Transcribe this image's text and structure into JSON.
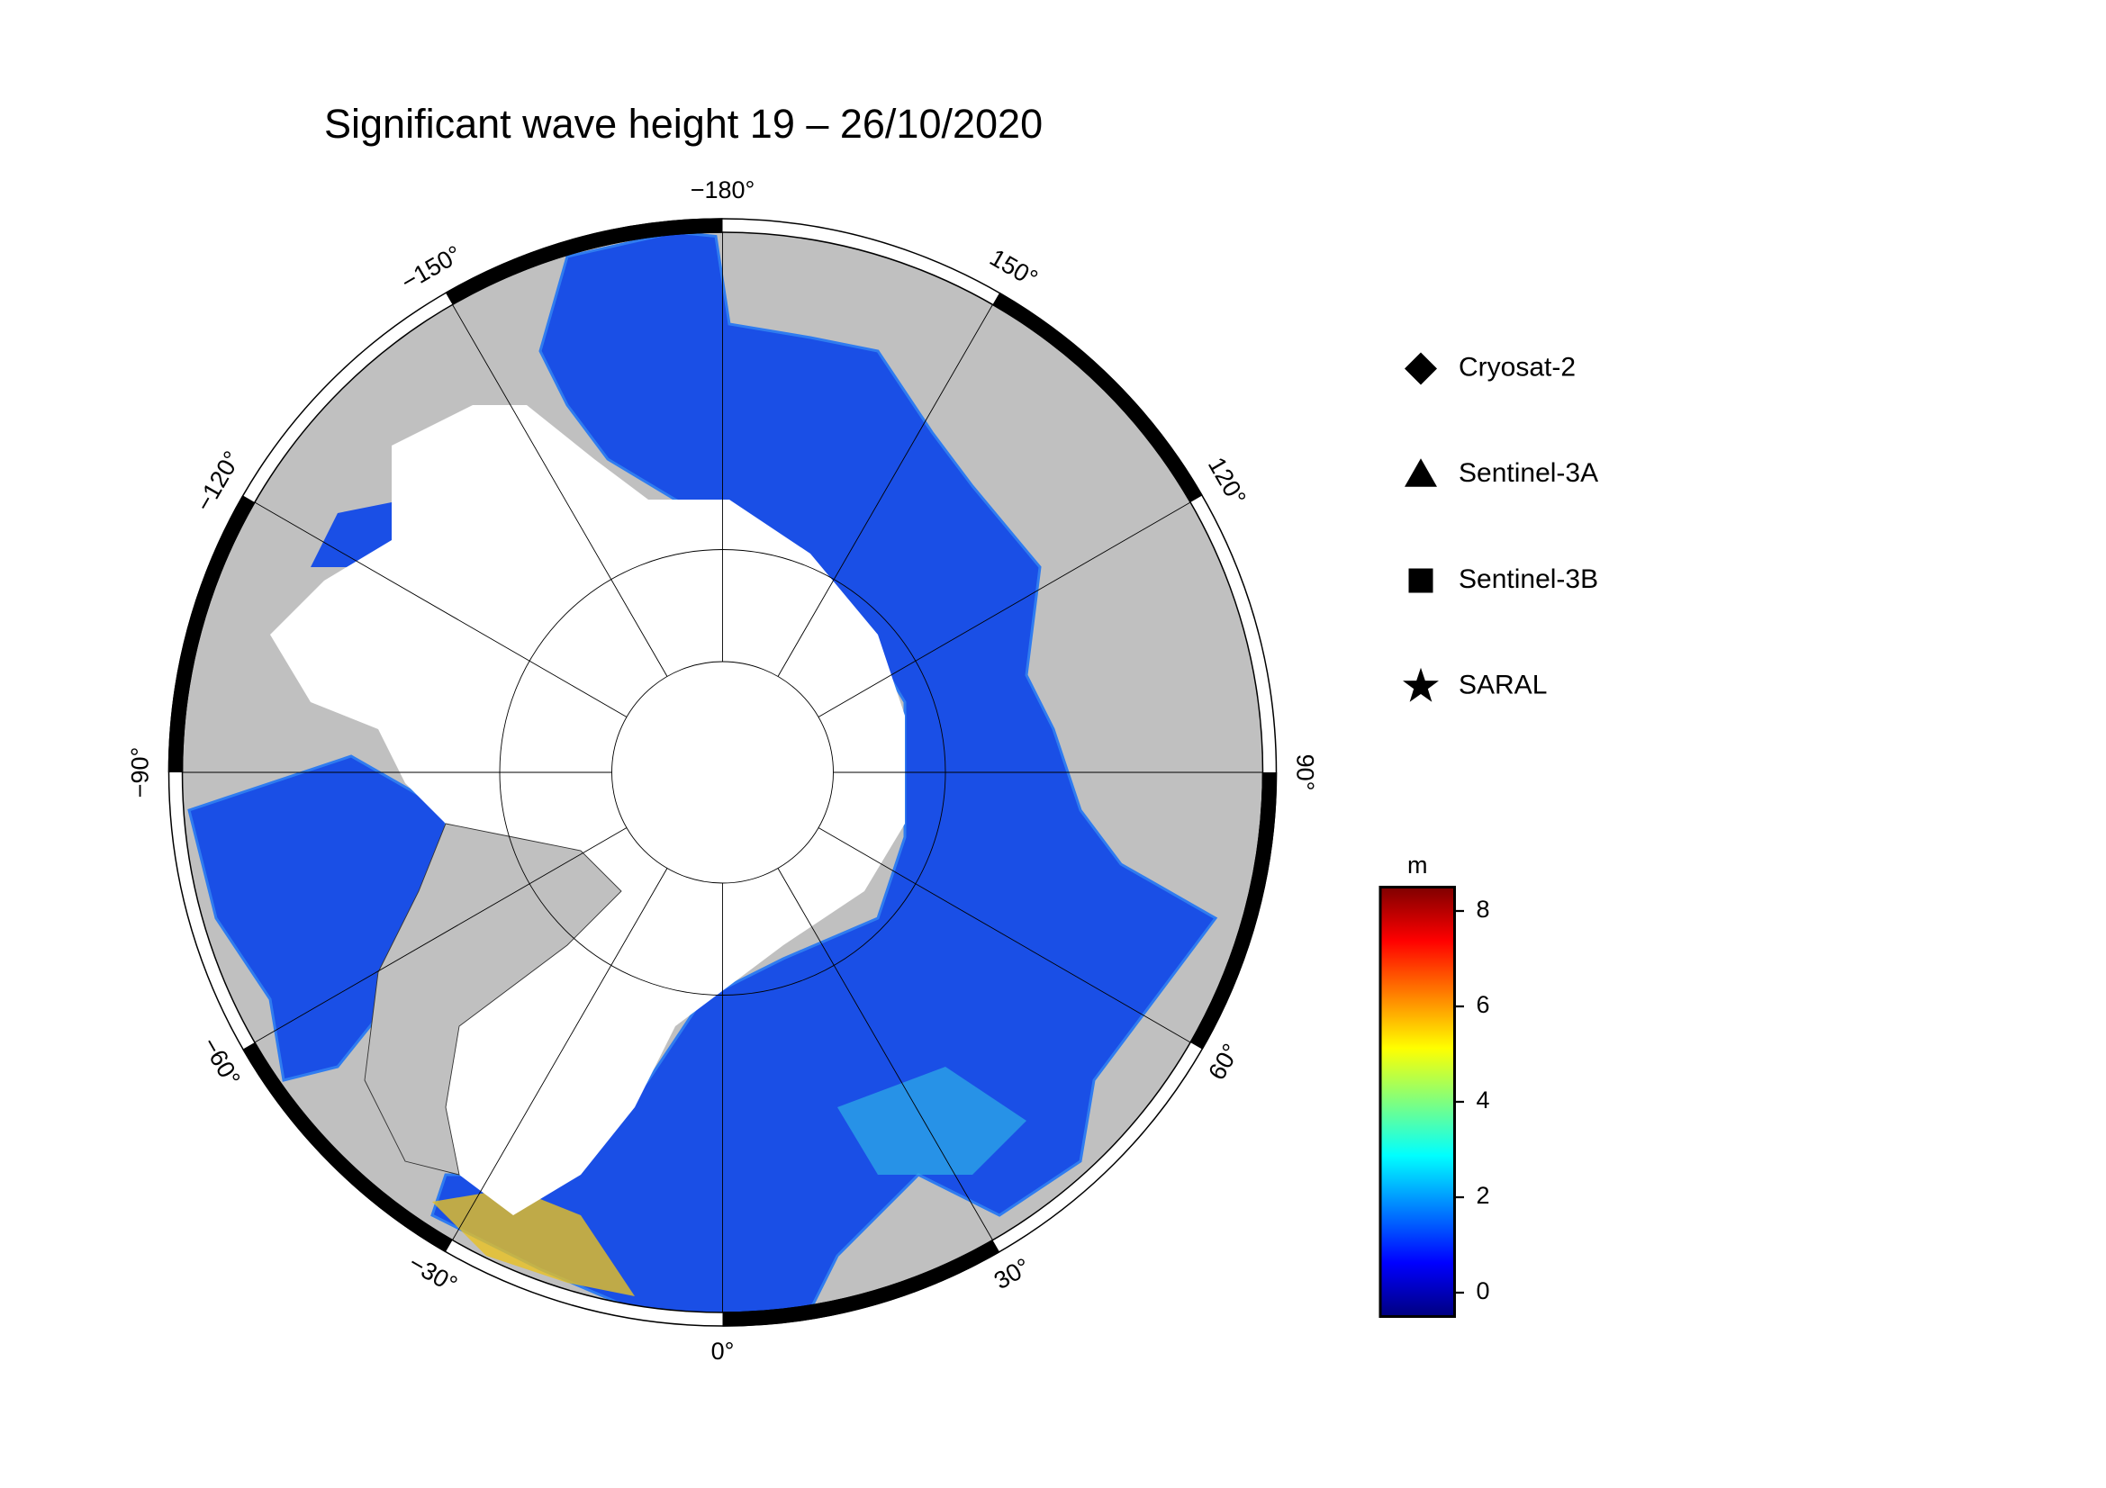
{
  "chart_data": {
    "type": "polar-map",
    "title": "Significant wave height 19 – 26/10/2020",
    "lon_ticks": [
      {
        "value": -180,
        "label": "−180°"
      },
      {
        "value": 150,
        "label": "150°"
      },
      {
        "value": 120,
        "label": "120°"
      },
      {
        "value": 90,
        "label": "90°"
      },
      {
        "value": 60,
        "label": "60°"
      },
      {
        "value": 30,
        "label": "30°"
      },
      {
        "value": 0,
        "label": "0°"
      },
      {
        "value": -30,
        "label": "−30°"
      },
      {
        "value": -60,
        "label": "−60°"
      },
      {
        "value": -90,
        "label": "−90°"
      },
      {
        "value": -120,
        "label": "−120°"
      },
      {
        "value": -150,
        "label": "−150°"
      }
    ],
    "legend": [
      "Cryosat-2",
      "Sentinel-3A",
      "Sentinel-3B",
      "SARAL"
    ],
    "colorbar": {
      "label": "m",
      "lim": [
        -0.5,
        8.5
      ],
      "ticks": [
        0,
        2,
        4,
        6,
        8
      ]
    }
  }
}
